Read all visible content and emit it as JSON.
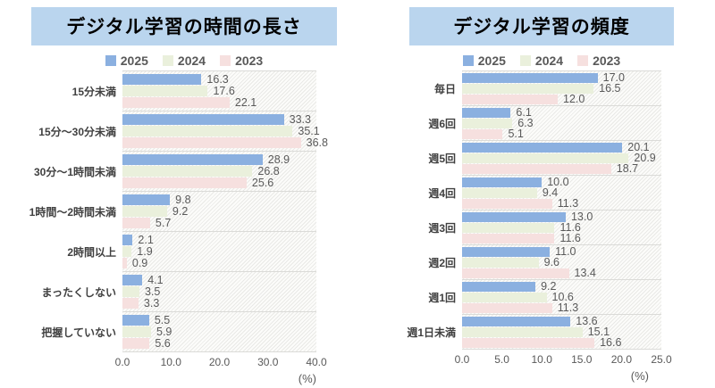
{
  "colors": {
    "series_2025": "#8BB0E0",
    "series_2024": "#EAF0DC",
    "series_2023": "#F6E0DF",
    "title_background": "#BAD5EE",
    "row_separator": "#DBDBD8",
    "label_text": "#595959"
  },
  "chart_data": [
    {
      "type": "bar",
      "orientation": "horizontal",
      "title": "デジタル学習の時間の長さ",
      "unit_label": "(%)",
      "legend_position": "top",
      "grid": "row-separators",
      "xlim": [
        0,
        40
      ],
      "xticks": [
        "0.0",
        "10.0",
        "20.0",
        "30.0",
        "40.0"
      ],
      "xtick_values": [
        0,
        10,
        20,
        30,
        40
      ],
      "categories": [
        "15分未満",
        "15分〜30分未満",
        "30分〜1時間未満",
        "1時間〜2時間未満",
        "2時間以上",
        "まったくしない",
        "把握していない"
      ],
      "series": [
        {
          "name": "2025",
          "color": "#8BB0E0",
          "values": [
            16.3,
            33.3,
            28.9,
            9.8,
            2.1,
            4.1,
            5.5
          ]
        },
        {
          "name": "2024",
          "color": "#EAF0DC",
          "values": [
            17.6,
            35.1,
            26.8,
            9.2,
            1.9,
            3.5,
            5.9
          ]
        },
        {
          "name": "2023",
          "color": "#F6E0DF",
          "values": [
            22.1,
            36.8,
            25.6,
            5.7,
            0.9,
            3.3,
            5.6
          ]
        }
      ]
    },
    {
      "type": "bar",
      "orientation": "horizontal",
      "title": "デジタル学習の頻度",
      "unit_label": "(%)",
      "legend_position": "top",
      "grid": "row-separators",
      "xlim": [
        0,
        25
      ],
      "xticks": [
        "0.0",
        "5.0",
        "10.0",
        "15.0",
        "20.0",
        "25.0"
      ],
      "xtick_values": [
        0,
        5,
        10,
        15,
        20,
        25
      ],
      "categories": [
        "毎日",
        "週6回",
        "週5回",
        "週4回",
        "週3回",
        "週2回",
        "週1回",
        "週1日未満"
      ],
      "series": [
        {
          "name": "2025",
          "color": "#8BB0E0",
          "values": [
            17.0,
            6.1,
            20.1,
            10.0,
            13.0,
            11.0,
            9.2,
            13.6
          ]
        },
        {
          "name": "2024",
          "color": "#EAF0DC",
          "values": [
            16.5,
            6.3,
            20.9,
            9.4,
            11.6,
            9.6,
            10.6,
            15.1
          ]
        },
        {
          "name": "2023",
          "color": "#F6E0DF",
          "values": [
            12.0,
            5.1,
            18.7,
            11.3,
            11.6,
            13.4,
            11.3,
            16.6
          ]
        }
      ]
    }
  ]
}
